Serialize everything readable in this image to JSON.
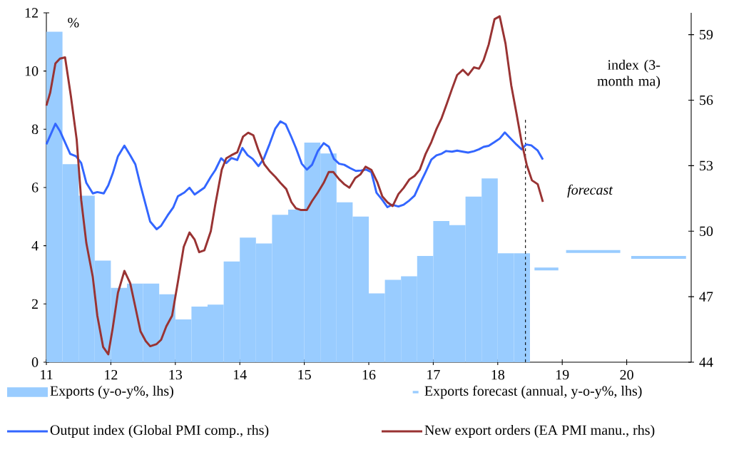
{
  "chart_data": {
    "type": "bar",
    "ylabel": "%",
    "y2label": "index (3-month ma)",
    "annotations": [
      "forecast"
    ],
    "xlim": [
      11,
      21
    ],
    "xticks": [
      11,
      12,
      13,
      14,
      15,
      16,
      17,
      18,
      19,
      20
    ],
    "ylim": [
      0,
      12
    ],
    "yticks": [
      0,
      2,
      4,
      6,
      8,
      10,
      12
    ],
    "y2lim": [
      44,
      60
    ],
    "y2ticks": [
      44,
      47,
      50,
      53,
      56,
      59
    ],
    "legend": "bottom",
    "marker": "none",
    "ref_lines": [
      {
        "axis": "x",
        "value": 18.43,
        "color": "#000000",
        "line_style": "dashed"
      }
    ],
    "series": [
      {
        "name": "Exports (y-o-y%, lhs)",
        "color": "#99ccff",
        "x": [
          11.125,
          11.375,
          11.625,
          11.875,
          12.125,
          12.375,
          12.625,
          12.875,
          13.125,
          13.375,
          13.625,
          13.875,
          14.125,
          14.375,
          14.625,
          14.875,
          15.125,
          15.375,
          15.625,
          15.875,
          16.125,
          16.375,
          16.625,
          16.875,
          17.125,
          17.375,
          17.625,
          17.875,
          18.125,
          18.375
        ],
        "values": [
          11.35,
          6.8,
          5.72,
          3.49,
          2.55,
          2.7,
          2.7,
          2.33,
          1.47,
          1.91,
          1.98,
          3.46,
          4.28,
          4.08,
          5.06,
          5.24,
          7.54,
          7.17,
          5.49,
          5.0,
          2.36,
          2.83,
          2.95,
          3.65,
          4.85,
          4.71,
          5.69,
          6.31,
          3.74,
          3.74
        ]
      },
      {
        "name": "Exports forecast (annual, y-o-y%, lhs)",
        "type": "line",
        "color": "#99ccff",
        "x": [
          18.57,
          18.94,
          19.0,
          19.06,
          19.9,
          20.0,
          20.07,
          20.92
        ],
        "values": [
          3.2,
          3.2,
          null,
          3.8,
          3.8,
          null,
          3.6,
          3.6
        ]
      },
      {
        "name": "Output index (Global PMI comp., rhs)",
        "type": "line",
        "axis": "y2",
        "color": "#3366ff",
        "x": [
          11.0,
          11.14,
          11.21,
          11.37,
          11.46,
          11.54,
          11.62,
          11.72,
          11.79,
          11.89,
          11.96,
          12.03,
          12.11,
          12.21,
          12.3,
          12.38,
          12.46,
          12.61,
          12.71,
          12.78,
          12.88,
          12.97,
          13.04,
          13.14,
          13.22,
          13.3,
          13.45,
          13.55,
          13.62,
          13.71,
          13.79,
          13.87,
          13.96,
          14.04,
          14.12,
          14.2,
          14.29,
          14.37,
          14.46,
          14.55,
          14.63,
          14.71,
          14.8,
          14.87,
          14.96,
          15.04,
          15.12,
          15.21,
          15.3,
          15.38,
          15.46,
          15.54,
          15.62,
          15.71,
          15.8,
          15.88,
          15.96,
          16.04,
          16.12,
          16.21,
          16.29,
          16.36,
          16.46,
          16.54,
          16.63,
          16.71,
          16.79,
          16.88,
          16.97,
          17.05,
          17.13,
          17.2,
          17.29,
          17.37,
          17.46,
          17.54,
          17.63,
          17.71,
          17.78,
          17.86,
          17.95,
          18.03,
          18.11,
          18.21,
          18.29,
          18.37,
          18.44,
          18.52,
          18.62,
          18.7
        ],
        "values": [
          53.98,
          54.92,
          54.59,
          53.54,
          53.43,
          53.12,
          52.21,
          51.73,
          51.79,
          51.73,
          52.1,
          52.65,
          53.43,
          53.92,
          53.48,
          53.06,
          52.1,
          50.44,
          50.09,
          50.25,
          50.72,
          51.1,
          51.6,
          51.77,
          51.99,
          51.68,
          51.99,
          52.49,
          52.8,
          53.34,
          53.12,
          53.35,
          53.26,
          53.81,
          53.48,
          53.31,
          52.98,
          53.31,
          53.98,
          54.7,
          55.03,
          54.9,
          54.31,
          53.81,
          53.09,
          52.82,
          53.04,
          53.67,
          54.03,
          53.87,
          53.31,
          53.09,
          53.04,
          52.89,
          52.76,
          52.78,
          52.82,
          52.7,
          51.76,
          51.43,
          51.1,
          51.21,
          51.13,
          51.21,
          51.41,
          51.63,
          52.15,
          52.7,
          53.28,
          53.47,
          53.55,
          53.67,
          53.64,
          53.69,
          53.64,
          53.6,
          53.66,
          53.75,
          53.86,
          53.91,
          54.08,
          54.24,
          54.52,
          54.21,
          53.97,
          53.75,
          53.97,
          53.93,
          53.69,
          53.28
        ]
      },
      {
        "name": "New export orders (EA PMI manu., rhs)",
        "type": "line",
        "axis": "y2",
        "color": "#993333",
        "x": [
          11.0,
          11.06,
          11.14,
          11.21,
          11.29,
          11.38,
          11.47,
          11.54,
          11.62,
          11.72,
          11.79,
          11.88,
          11.96,
          12.03,
          12.11,
          12.21,
          12.3,
          12.38,
          12.46,
          12.54,
          12.61,
          12.71,
          12.78,
          12.86,
          12.95,
          13.04,
          13.13,
          13.22,
          13.3,
          13.37,
          13.45,
          13.55,
          13.62,
          13.72,
          13.79,
          13.87,
          13.96,
          14.05,
          14.13,
          14.21,
          14.29,
          14.38,
          14.46,
          14.55,
          14.63,
          14.72,
          14.8,
          14.87,
          14.95,
          15.04,
          15.12,
          15.21,
          15.3,
          15.38,
          15.45,
          15.54,
          15.62,
          15.7,
          15.79,
          15.87,
          15.95,
          16.04,
          16.13,
          16.21,
          16.29,
          16.37,
          16.46,
          16.54,
          16.63,
          16.71,
          16.79,
          16.88,
          16.97,
          17.05,
          17.13,
          17.21,
          17.29,
          17.37,
          17.46,
          17.54,
          17.63,
          17.71,
          17.78,
          17.86,
          17.95,
          18.03,
          18.12,
          18.21,
          18.29,
          18.37,
          18.45,
          18.53,
          18.62,
          18.7
        ],
        "values": [
          55.75,
          56.35,
          57.68,
          57.9,
          57.96,
          56.19,
          54.2,
          51.44,
          49.45,
          47.9,
          46.13,
          44.7,
          44.36,
          45.58,
          47.18,
          48.18,
          47.62,
          46.52,
          45.41,
          44.97,
          44.73,
          44.83,
          45.03,
          45.64,
          46.13,
          47.68,
          49.28,
          49.94,
          49.61,
          49.04,
          49.12,
          50.0,
          51.22,
          52.82,
          53.34,
          53.48,
          53.61,
          54.33,
          54.51,
          54.39,
          53.7,
          53.06,
          52.76,
          52.49,
          52.21,
          51.93,
          51.33,
          51.05,
          50.97,
          50.97,
          51.38,
          51.77,
          52.21,
          52.71,
          52.71,
          52.38,
          52.15,
          51.99,
          52.43,
          52.6,
          52.95,
          52.81,
          52.26,
          51.59,
          51.32,
          51.15,
          51.7,
          51.98,
          52.37,
          52.53,
          52.81,
          53.53,
          54.08,
          54.68,
          55.18,
          55.84,
          56.51,
          57.15,
          57.39,
          57.15,
          57.5,
          57.44,
          57.83,
          58.55,
          59.71,
          59.84,
          58.6,
          56.67,
          55.4,
          54.08,
          53.03,
          52.33,
          52.15,
          51.34
        ]
      }
    ]
  }
}
